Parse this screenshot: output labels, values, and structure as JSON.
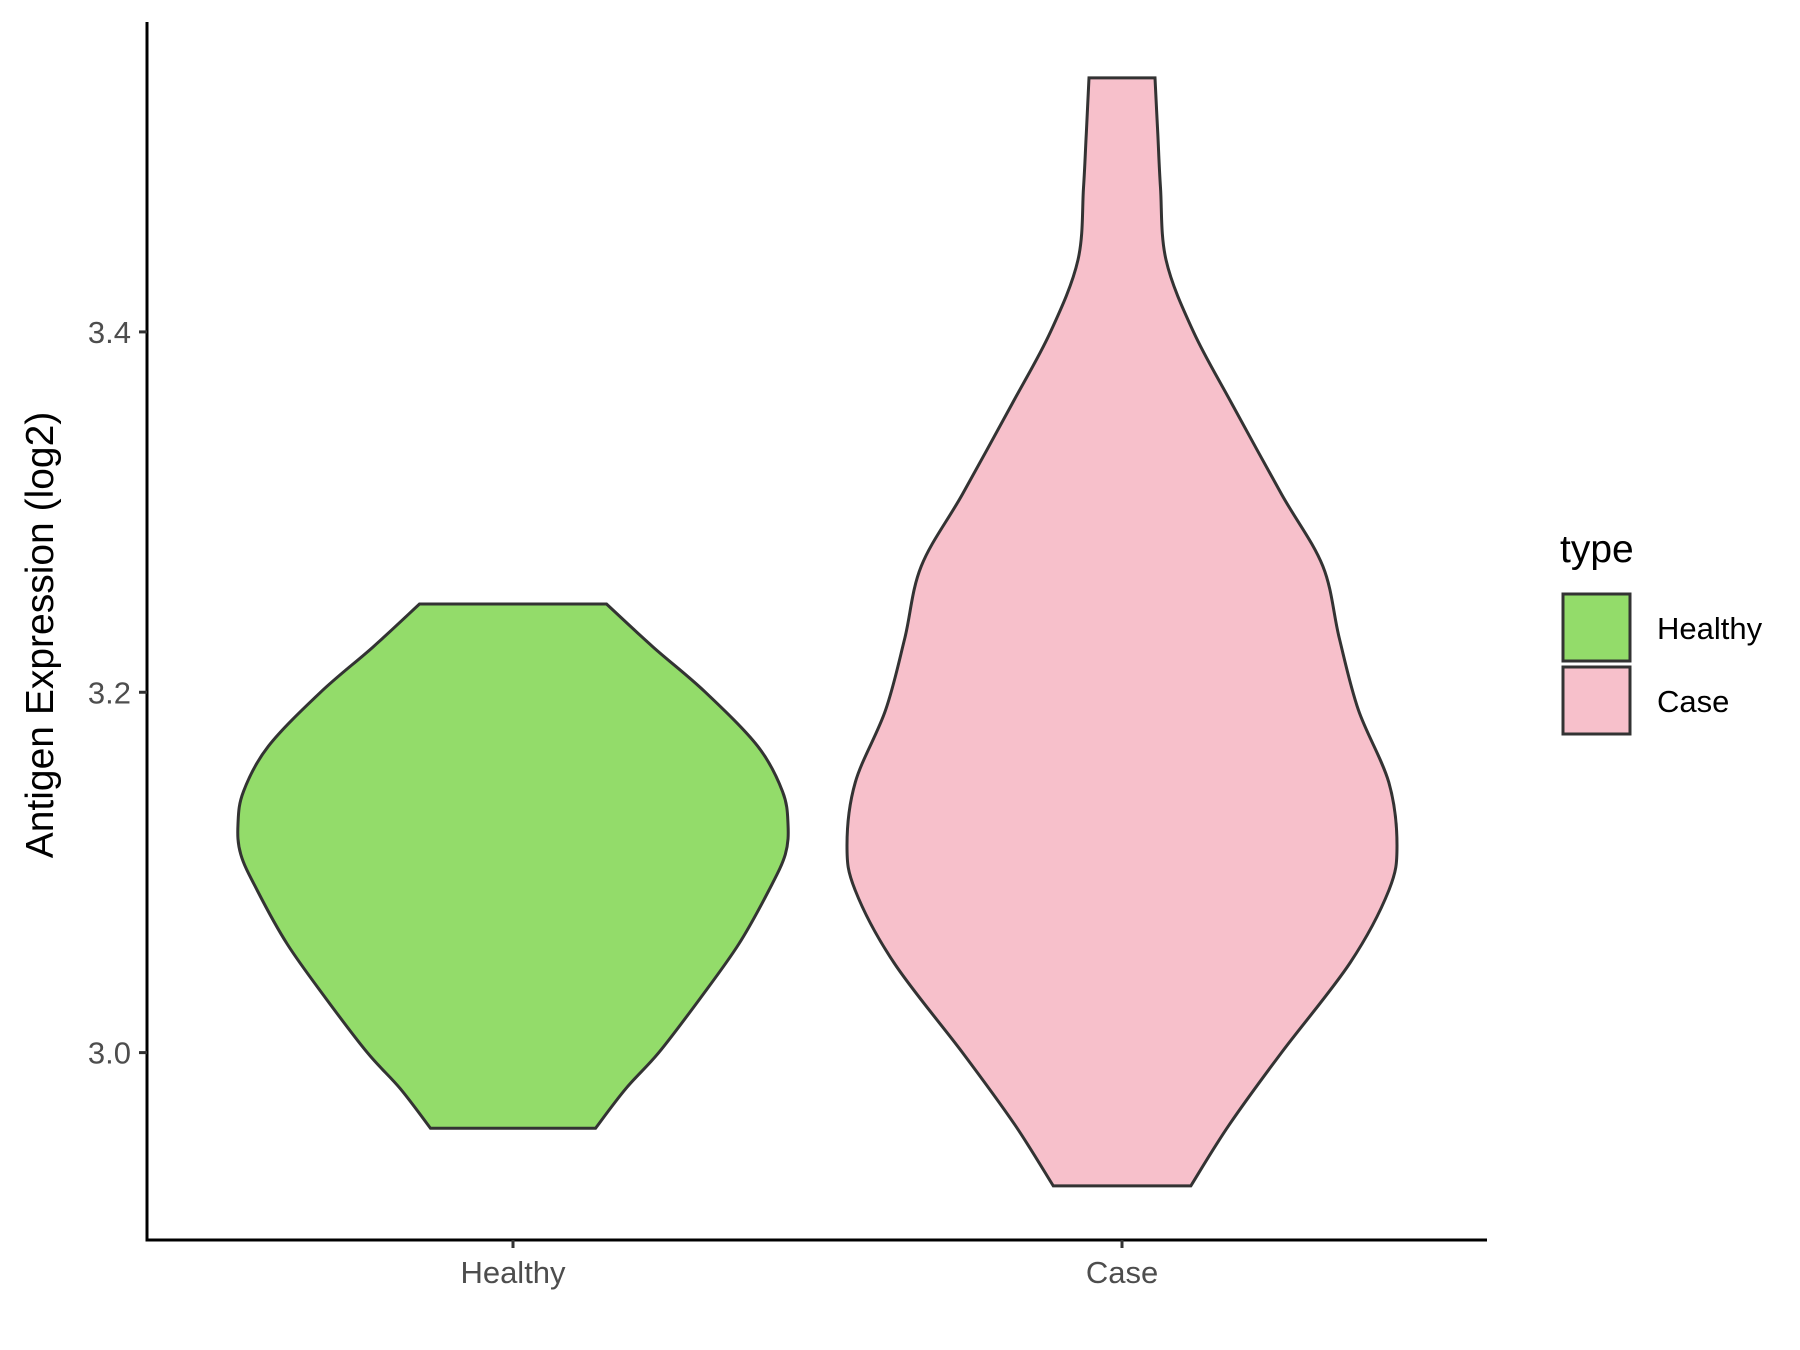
{
  "chart_data": {
    "type": "violin",
    "title": "",
    "xlabel": "",
    "ylabel": "Antigen Expression (log2)",
    "categories": [
      "Healthy",
      "Case"
    ],
    "ylim": [
      2.896,
      3.572
    ],
    "y_ticks": [
      3.0,
      3.2,
      3.4
    ],
    "y_tick_labels": [
      "3.0",
      "3.2",
      "3.4"
    ],
    "grid": false,
    "legend": {
      "title": "type",
      "placement": "right",
      "entries": [
        {
          "label": "Healthy",
          "color": "#93dc6a"
        },
        {
          "label": "Case",
          "color": "#f7c0cb"
        }
      ]
    },
    "series": [
      {
        "category": "Healthy",
        "color": "#93dc6a",
        "min": 2.958,
        "max": 3.249,
        "density_profile": [
          {
            "y": 2.958,
            "w": 0.3
          },
          {
            "y": 2.98,
            "w": 0.41
          },
          {
            "y": 3.0,
            "w": 0.53
          },
          {
            "y": 3.03,
            "w": 0.68
          },
          {
            "y": 3.06,
            "w": 0.82
          },
          {
            "y": 3.09,
            "w": 0.93
          },
          {
            "y": 3.11,
            "w": 0.99
          },
          {
            "y": 3.127,
            "w": 1.0
          },
          {
            "y": 3.145,
            "w": 0.98
          },
          {
            "y": 3.17,
            "w": 0.89
          },
          {
            "y": 3.2,
            "w": 0.7
          },
          {
            "y": 3.225,
            "w": 0.51
          },
          {
            "y": 3.249,
            "w": 0.34
          }
        ]
      },
      {
        "category": "Case",
        "color": "#f7c0cb",
        "min": 2.926,
        "max": 3.541,
        "density_profile": [
          {
            "y": 2.926,
            "w": 0.25
          },
          {
            "y": 2.96,
            "w": 0.39
          },
          {
            "y": 3.0,
            "w": 0.58
          },
          {
            "y": 3.05,
            "w": 0.83
          },
          {
            "y": 3.09,
            "w": 0.97
          },
          {
            "y": 3.115,
            "w": 1.0
          },
          {
            "y": 3.15,
            "w": 0.97
          },
          {
            "y": 3.19,
            "w": 0.86
          },
          {
            "y": 3.23,
            "w": 0.79
          },
          {
            "y": 3.27,
            "w": 0.73
          },
          {
            "y": 3.31,
            "w": 0.58
          },
          {
            "y": 3.36,
            "w": 0.4
          },
          {
            "y": 3.4,
            "w": 0.26
          },
          {
            "y": 3.44,
            "w": 0.16
          },
          {
            "y": 3.48,
            "w": 0.14
          },
          {
            "y": 3.51,
            "w": 0.13
          },
          {
            "y": 3.541,
            "w": 0.12
          }
        ]
      }
    ]
  }
}
